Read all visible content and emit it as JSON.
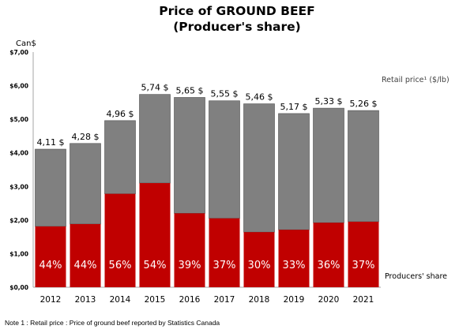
{
  "chart_data": {
    "type": "bar",
    "stacked": true,
    "title": "Price of GROUND BEEF",
    "subtitle": "(Producer's share)",
    "ylabel": "Can$",
    "xlabel": "",
    "categories": [
      "2012",
      "2013",
      "2014",
      "2015",
      "2016",
      "2017",
      "2018",
      "2019",
      "2020",
      "2021"
    ],
    "ylim": [
      0,
      7
    ],
    "yticks": [
      "$0,00",
      "$1,00",
      "$2,00",
      "$3,00",
      "$4,00",
      "$5,00",
      "$6,00",
      "$7,00"
    ],
    "grid": false,
    "series": [
      {
        "name": "Producers' share",
        "color": "#C00000",
        "values": [
          1.81,
          1.88,
          2.78,
          3.1,
          2.2,
          2.05,
          1.64,
          1.71,
          1.92,
          1.95
        ],
        "labels": [
          "44%",
          "44%",
          "56%",
          "54%",
          "39%",
          "37%",
          "30%",
          "33%",
          "36%",
          "37%"
        ]
      },
      {
        "name": "Retail price¹ ($/lb)",
        "color": "#808080",
        "totals": [
          4.11,
          4.28,
          4.96,
          5.74,
          5.65,
          5.55,
          5.46,
          5.17,
          5.33,
          5.26
        ],
        "labels": [
          "4,11 $",
          "4,28 $",
          "4,96 $",
          "5,74 $",
          "5,65 $",
          "5,55 $",
          "5,46 $",
          "5,17 $",
          "5,33 $",
          "5,26 $"
        ]
      }
    ]
  },
  "footnote": "Note 1 : Retail price : Price of ground beef reported by Statistics Canada"
}
